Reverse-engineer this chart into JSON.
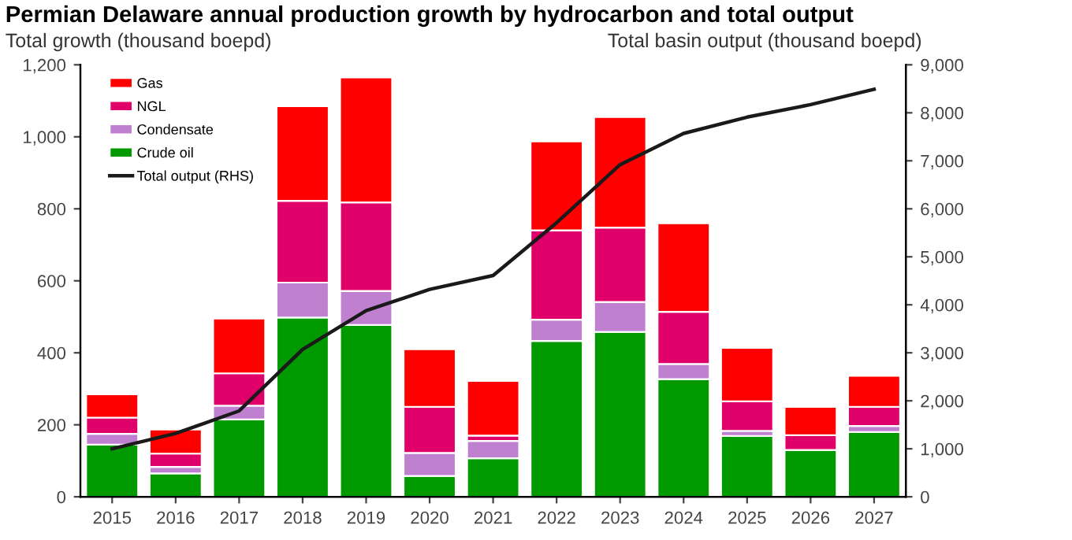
{
  "chart_data": {
    "type": "bar",
    "stacked": true,
    "title": "Permian Delaware annual production growth by hydrocarbon and total output",
    "ylabel": "Total growth (thousand boepd)",
    "y2label": "Total basin output (thousand boepd)",
    "categories": [
      "2015",
      "2016",
      "2017",
      "2018",
      "2019",
      "2020",
      "2021",
      "2022",
      "2023",
      "2024",
      "2025",
      "2026",
      "2027"
    ],
    "series": [
      {
        "name": "Crude oil",
        "color": "#009900",
        "values": [
          145,
          65,
          215,
          498,
          477,
          58,
          107,
          433,
          458,
          327,
          169,
          130,
          180
        ]
      },
      {
        "name": "Condensate",
        "color": "#c080d0",
        "values": [
          30,
          18,
          38,
          97,
          95,
          64,
          48,
          59,
          83,
          42,
          14,
          null,
          17
        ]
      },
      {
        "name": "NGL",
        "color": "#e0006a",
        "values": [
          45,
          37,
          90,
          227,
          246,
          128,
          15,
          248,
          207,
          145,
          82,
          41,
          53
        ]
      },
      {
        "name": "Gas",
        "color": "#ff0000",
        "values": [
          65,
          67,
          152,
          263,
          347,
          160,
          152,
          247,
          307,
          246,
          149,
          79,
          86
        ]
      },
      {
        "name": "Total output (RHS)",
        "type": "line",
        "axis": "y2",
        "color": "#1a1a1a",
        "values": [
          1000,
          1320,
          1790,
          3070,
          3880,
          4320,
          4610,
          5710,
          6920,
          7570,
          7910,
          8170,
          8490
        ]
      }
    ],
    "ylim": [
      0,
      1200
    ],
    "yticks": [
      0,
      {
        "value": 200,
        "label": "200"
      },
      400,
      600,
      800,
      {
        "value": 1000,
        "label": "1,000"
      },
      {
        "value": 1200,
        "label": "1,200"
      }
    ],
    "y2lim": [
      0,
      9000
    ],
    "y2ticks": [
      0,
      {
        "value": 1000,
        "label": "1,000"
      },
      {
        "value": 2000,
        "label": "2,000"
      },
      {
        "value": 3000,
        "label": "3,000"
      },
      {
        "value": 4000,
        "label": "4,000"
      },
      {
        "value": 5000,
        "label": "5,000"
      },
      {
        "value": 6000,
        "label": "6,000"
      },
      {
        "value": 7000,
        "label": "7,000"
      },
      {
        "value": 8000,
        "label": "8,000"
      },
      {
        "value": 9000,
        "label": "9,000"
      }
    ],
    "grid": false,
    "legend": "top left",
    "marker": "none",
    "line_style": "solid"
  }
}
